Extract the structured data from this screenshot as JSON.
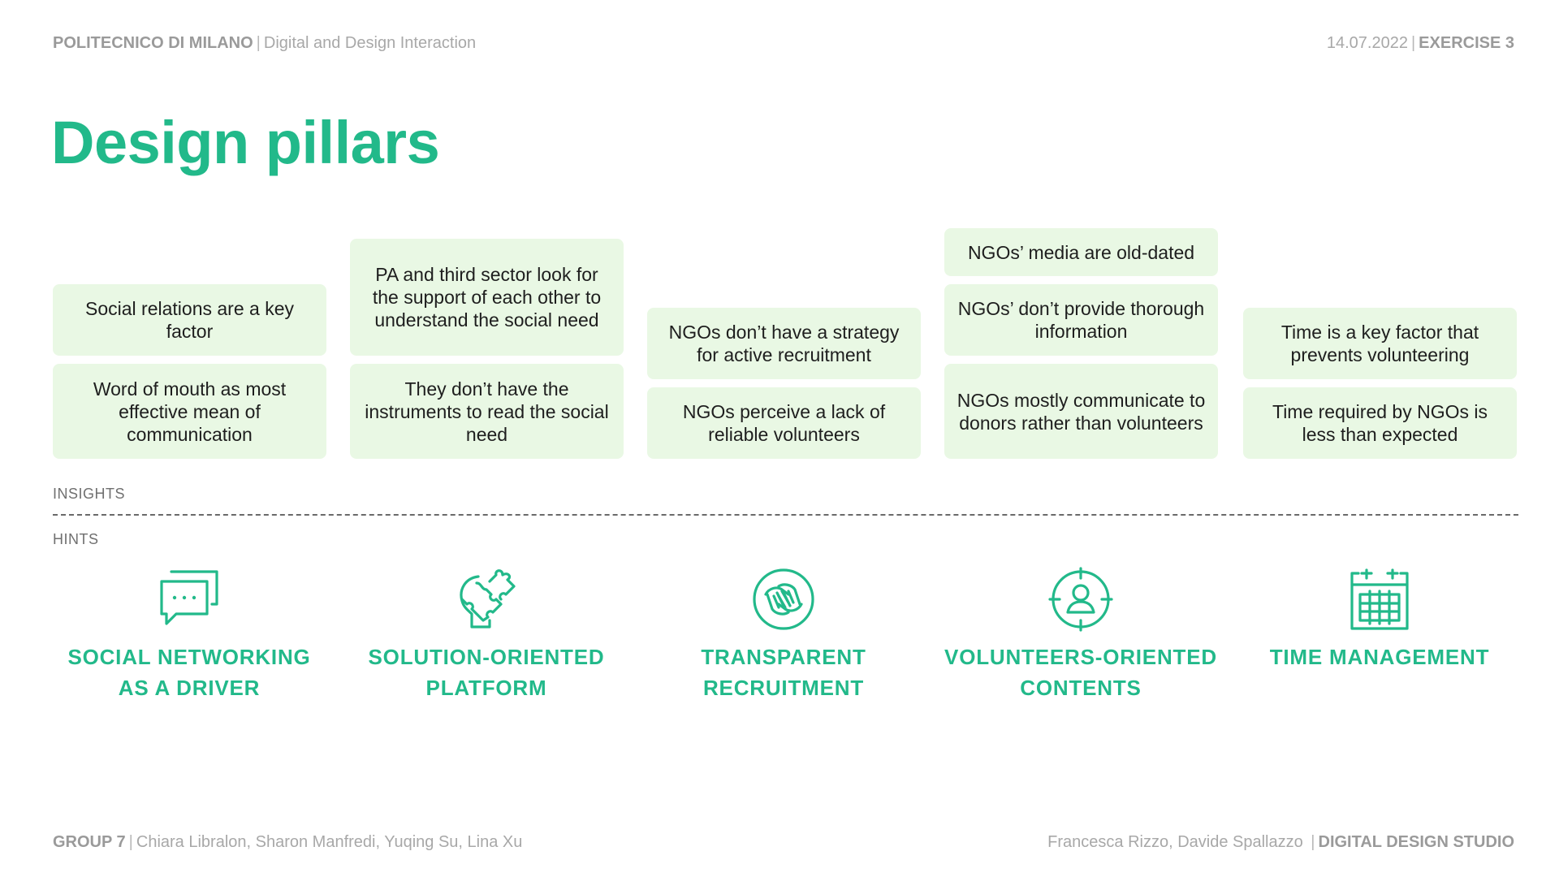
{
  "header": {
    "university": "POLITECNICO DI MILANO",
    "course": "Digital and Design Interaction",
    "date": "14.07.2022",
    "exercise": "EXERCISE 3"
  },
  "title": "Design pillars",
  "insights_label": "INSIGHTS",
  "hints_label": "HINTS",
  "columns": [
    {
      "cards": [
        "Social relations are a key factor",
        "Word of mouth as most effective mean of communication"
      ]
    },
    {
      "cards": [
        "PA and third sector look for the support of each other to understand the social need",
        "They don’t have the instruments to read the social need"
      ]
    },
    {
      "cards": [
        "NGOs don’t have a strategy for active recruitment",
        "NGOs perceive a lack of reliable volunteers"
      ]
    },
    {
      "cards": [
        "NGOs’ media are old-dated",
        "NGOs’ don’t provide thorough information",
        "NGOs mostly communicate to donors rather than volunteers"
      ]
    },
    {
      "cards": [
        "Time is a key factor that prevents volunteering",
        "Time required by NGOs is less than expected"
      ]
    }
  ],
  "hints": [
    {
      "icon": "chat-bubbles-icon",
      "line1": "SOCIAL NETWORKING",
      "line2": "AS A DRIVER"
    },
    {
      "icon": "head-puzzle-icon",
      "line1": "SOLUTION-ORIENTED",
      "line2": "PLATFORM"
    },
    {
      "icon": "handshake-icon",
      "line1": "TRANSPARENT",
      "line2": "RECRUITMENT"
    },
    {
      "icon": "target-user-icon",
      "line1": "VOLUNTEERS-ORIENTED",
      "line2": "CONTENTS"
    },
    {
      "icon": "calendar-icon",
      "line1": "TIME MANAGEMENT",
      "line2": ""
    }
  ],
  "footer": {
    "group": "GROUP 7",
    "members": "Chiara Libralon, Sharon Manfredi, Yuqing Su, Lina Xu",
    "professors": "Francesca Rizzo, Davide Spallazzo",
    "studio": "DIGITAL DESIGN STUDIO"
  },
  "colors": {
    "accent": "#22b98a",
    "card_bg": "#e9f8e4"
  }
}
